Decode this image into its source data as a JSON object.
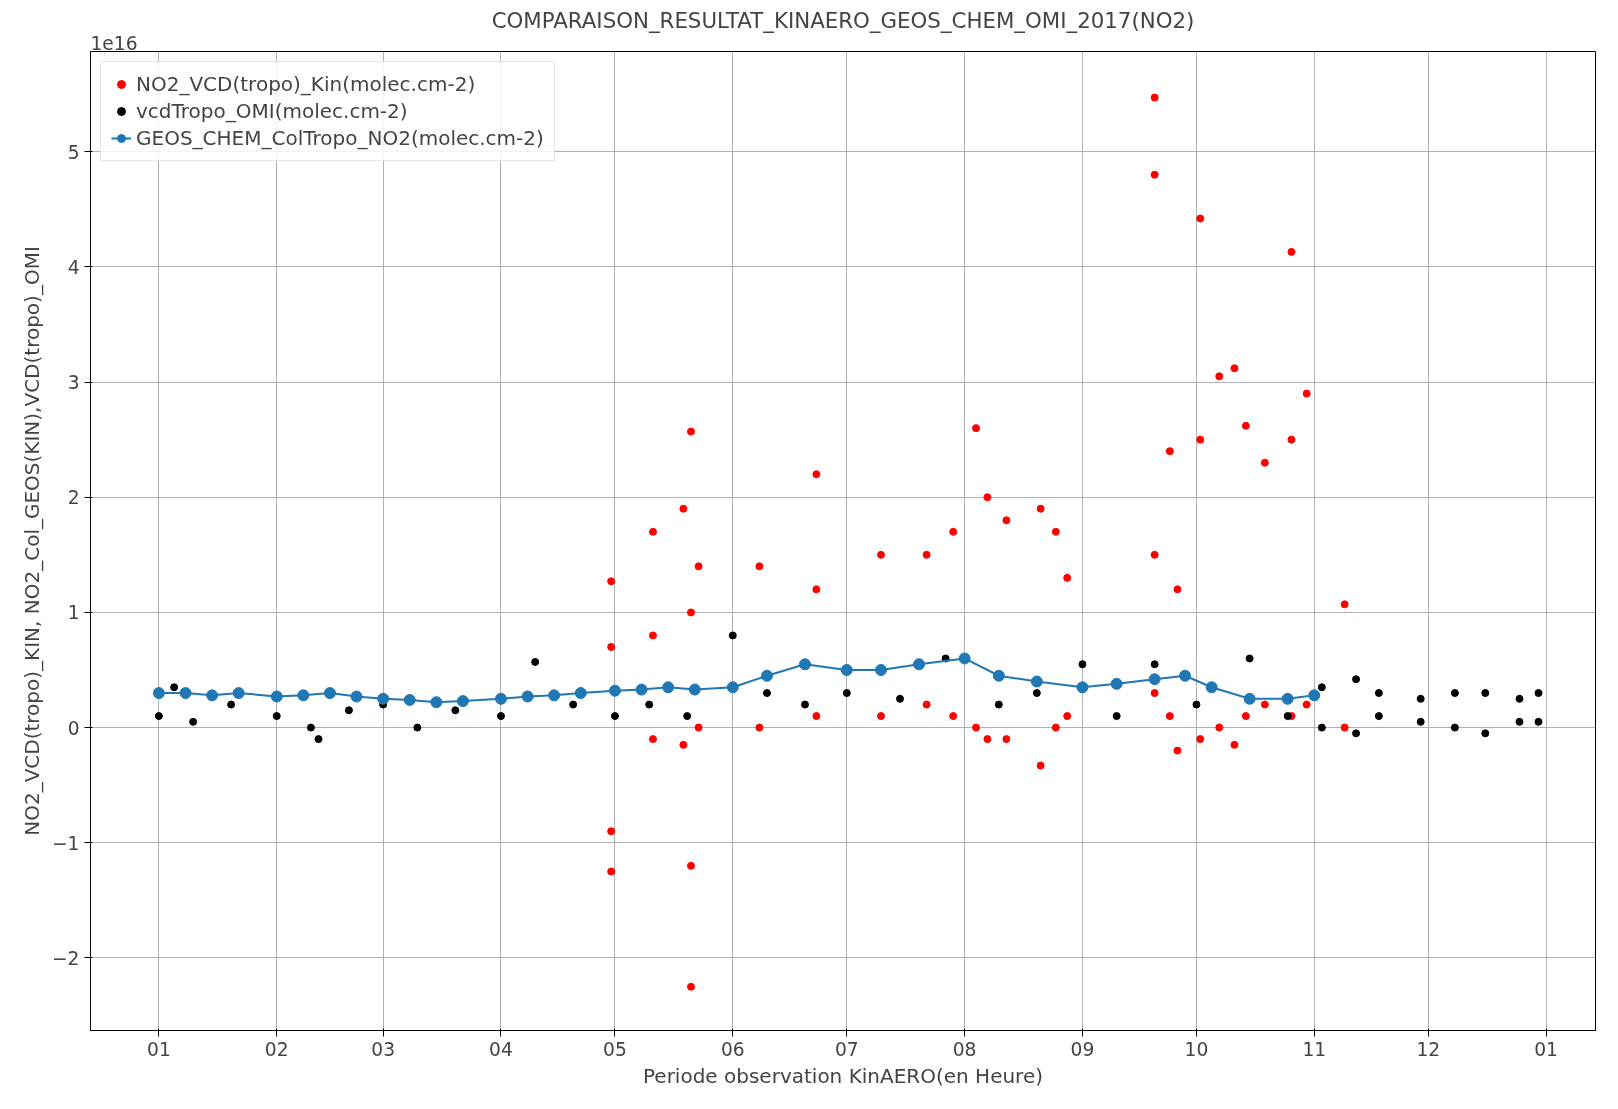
{
  "chart_data": {
    "type": "scatter",
    "title": "COMPARAISON_RESULTAT_KINAERO_GEOS_CHEM_OMI_2017(NO2)",
    "xlabel": "Periode observation KinAERO(en Heure)",
    "ylabel": "NO2_VCD(tropo)_KIN, NO2_Col_GEOS(KIN),VCD(tropo)_OMI",
    "annotations": [
      "1e16"
    ],
    "xlim": [
      "2016-12-14",
      "2018-01-14"
    ],
    "ylim": [
      -2.63,
      5.87
    ],
    "xticks": [
      {
        "value": "2017-01-01",
        "label": "01"
      },
      {
        "value": "2017-02-01",
        "label": "02"
      },
      {
        "value": "2017-03-01",
        "label": "03"
      },
      {
        "value": "2017-04-01",
        "label": "04"
      },
      {
        "value": "2017-05-01",
        "label": "05"
      },
      {
        "value": "2017-06-01",
        "label": "06"
      },
      {
        "value": "2017-07-01",
        "label": "07"
      },
      {
        "value": "2017-08-01",
        "label": "08"
      },
      {
        "value": "2017-09-01",
        "label": "09"
      },
      {
        "value": "2017-10-01",
        "label": "10"
      },
      {
        "value": "2017-11-01",
        "label": "11"
      },
      {
        "value": "2017-12-01",
        "label": "12"
      },
      {
        "value": "2018-01-01",
        "label": "01"
      }
    ],
    "yticks": [
      {
        "value": -2,
        "label": "−2"
      },
      {
        "value": -1,
        "label": "−1"
      },
      0,
      1,
      2,
      3,
      4,
      5
    ],
    "grid": true,
    "legend": "top left",
    "marker": "circle",
    "series": [
      {
        "name": "NO2_VCD(tropo)_Kin(molec.cm-2)",
        "color": "#ff0000",
        "x": [
          "2017-04-30",
          "2017-04-30",
          "2017-04-30",
          "2017-04-30",
          "2017-05-11",
          "2017-05-11",
          "2017-05-11",
          "2017-05-19",
          "2017-05-19",
          "2017-05-21",
          "2017-05-21",
          "2017-05-21",
          "2017-05-21",
          "2017-05-23",
          "2017-05-23",
          "2017-06-08",
          "2017-06-08",
          "2017-06-23",
          "2017-06-23",
          "2017-06-23",
          "2017-07-10",
          "2017-07-10",
          "2017-07-22",
          "2017-07-22",
          "2017-07-29",
          "2017-07-29",
          "2017-08-04",
          "2017-08-04",
          "2017-08-07",
          "2017-08-07",
          "2017-08-12",
          "2017-08-12",
          "2017-08-21",
          "2017-08-21",
          "2017-08-25",
          "2017-08-25",
          "2017-08-28",
          "2017-08-28",
          "2017-09-20",
          "2017-09-20",
          "2017-09-20",
          "2017-09-20",
          "2017-09-24",
          "2017-09-24",
          "2017-09-26",
          "2017-09-26",
          "2017-10-02",
          "2017-10-02",
          "2017-10-02",
          "2017-10-07",
          "2017-10-07",
          "2017-10-11",
          "2017-10-11",
          "2017-10-14",
          "2017-10-14",
          "2017-10-19",
          "2017-10-19",
          "2017-10-26",
          "2017-10-26",
          "2017-10-26",
          "2017-10-30",
          "2017-10-30",
          "2017-11-09",
          "2017-11-09"
        ],
        "values": [
          -1.25,
          -0.9,
          0.7,
          1.27,
          -0.1,
          0.8,
          1.7,
          -0.15,
          1.9,
          -2.25,
          -1.2,
          1.0,
          2.57,
          0.0,
          1.4,
          0.0,
          1.4,
          0.1,
          1.2,
          2.2,
          0.1,
          1.5,
          0.2,
          1.5,
          0.1,
          1.7,
          0.0,
          2.6,
          -0.1,
          2.0,
          -0.1,
          1.8,
          -0.33,
          1.9,
          0.0,
          1.7,
          0.1,
          1.3,
          0.3,
          1.5,
          4.8,
          5.47,
          0.1,
          2.4,
          -0.2,
          1.2,
          -0.1,
          2.5,
          4.42,
          0.0,
          3.05,
          -0.15,
          3.12,
          0.1,
          2.62,
          0.2,
          2.3,
          0.1,
          2.5,
          4.13,
          0.2,
          2.9,
          0.0,
          1.07
        ]
      },
      {
        "name": "vcdTropo_OMI(molec.cm-2)",
        "color": "#000000",
        "x": [
          "2017-01-01",
          "2017-01-05",
          "2017-01-10",
          "2017-01-20",
          "2017-02-01",
          "2017-02-10",
          "2017-02-12",
          "2017-02-20",
          "2017-03-01",
          "2017-03-10",
          "2017-03-20",
          "2017-04-01",
          "2017-04-10",
          "2017-04-20",
          "2017-05-01",
          "2017-05-10",
          "2017-05-20",
          "2017-06-01",
          "2017-06-10",
          "2017-06-20",
          "2017-07-01",
          "2017-07-15",
          "2017-07-27",
          "2017-08-10",
          "2017-08-20",
          "2017-09-01",
          "2017-09-10",
          "2017-09-20",
          "2017-10-01",
          "2017-10-15",
          "2017-10-25",
          "2017-11-03",
          "2017-11-03",
          "2017-11-12",
          "2017-11-12",
          "2017-11-18",
          "2017-11-18",
          "2017-11-29",
          "2017-11-29",
          "2017-12-08",
          "2017-12-08",
          "2017-12-16",
          "2017-12-16",
          "2017-12-25",
          "2017-12-25",
          "2017-12-30",
          "2017-12-30"
        ],
        "values": [
          0.1,
          0.35,
          0.05,
          0.2,
          0.1,
          0.0,
          -0.1,
          0.15,
          0.2,
          0.0,
          0.15,
          0.1,
          0.57,
          0.2,
          0.1,
          0.2,
          0.1,
          0.8,
          0.3,
          0.2,
          0.3,
          0.25,
          0.6,
          0.2,
          0.3,
          0.55,
          0.1,
          0.55,
          0.2,
          0.6,
          0.1,
          0.0,
          0.35,
          -0.05,
          0.42,
          0.1,
          0.3,
          0.05,
          0.25,
          0.0,
          0.3,
          -0.05,
          0.3,
          0.05,
          0.25,
          0.05,
          0.3
        ]
      },
      {
        "name": "GEOS_CHEM_ColTropo_NO2(molec.cm-2)",
        "type": "line",
        "color": "#1f77b4",
        "x": [
          "2017-01-01",
          "2017-01-08",
          "2017-01-15",
          "2017-01-22",
          "2017-02-01",
          "2017-02-08",
          "2017-02-15",
          "2017-02-22",
          "2017-03-01",
          "2017-03-08",
          "2017-03-15",
          "2017-03-22",
          "2017-04-01",
          "2017-04-08",
          "2017-04-15",
          "2017-04-22",
          "2017-05-01",
          "2017-05-08",
          "2017-05-15",
          "2017-05-22",
          "2017-06-01",
          "2017-06-10",
          "2017-06-20",
          "2017-07-01",
          "2017-07-10",
          "2017-07-20",
          "2017-08-01",
          "2017-08-10",
          "2017-08-20",
          "2017-09-01",
          "2017-09-10",
          "2017-09-20",
          "2017-09-28",
          "2017-10-05",
          "2017-10-15",
          "2017-10-25",
          "2017-11-01"
        ],
        "values": [
          0.3,
          0.3,
          0.28,
          0.3,
          0.27,
          0.28,
          0.3,
          0.27,
          0.25,
          0.24,
          0.22,
          0.23,
          0.25,
          0.27,
          0.28,
          0.3,
          0.32,
          0.33,
          0.35,
          0.33,
          0.35,
          0.45,
          0.55,
          0.5,
          0.5,
          0.55,
          0.6,
          0.45,
          0.4,
          0.35,
          0.38,
          0.42,
          0.45,
          0.35,
          0.25,
          0.25,
          0.28
        ]
      }
    ]
  }
}
